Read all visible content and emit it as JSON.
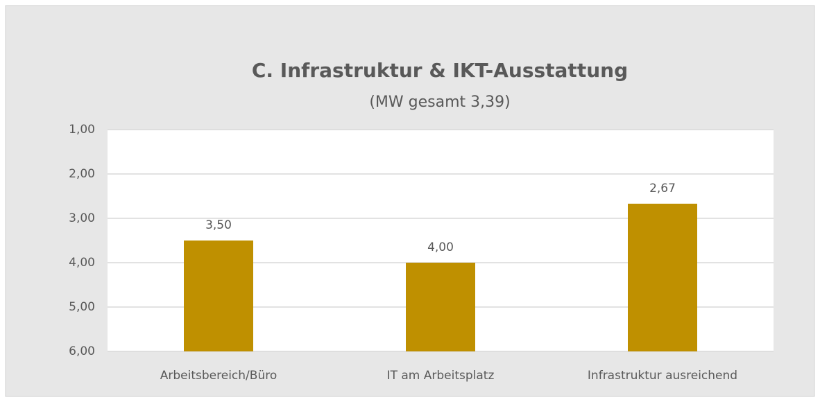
{
  "chart_data": {
    "type": "bar",
    "title": "C. Infrastruktur & IKT-Ausstattung",
    "subtitle": "(MW gesamt 3,39)",
    "categories": [
      "Arbeitsbereich/Büro",
      "IT am Arbeitsplatz",
      "Infrastruktur ausreichend"
    ],
    "values": [
      3.5,
      4.0,
      2.67
    ],
    "value_labels": [
      "3,50",
      "4,00",
      "2,67"
    ],
    "color": "#bf9000",
    "ylim": [
      6,
      1
    ],
    "yticks": [
      {
        "value": 1,
        "label": "1,00"
      },
      {
        "value": 2,
        "label": "2,00"
      },
      {
        "value": 3,
        "label": "3,00"
      },
      {
        "value": 4,
        "label": "4,00"
      },
      {
        "value": 5,
        "label": "5,00"
      },
      {
        "value": 6,
        "label": "6,00"
      }
    ],
    "grid": true
  }
}
